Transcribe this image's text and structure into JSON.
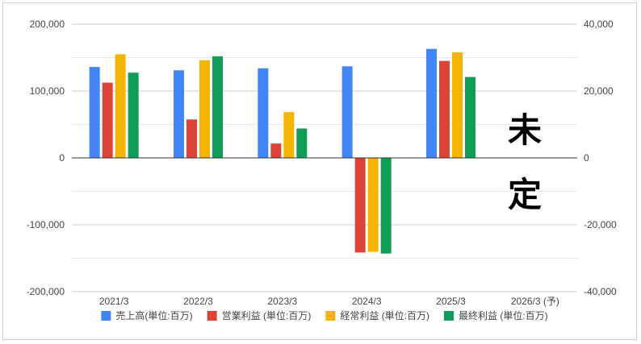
{
  "chart_data": {
    "type": "bar",
    "categories": [
      "2021/3",
      "2022/3",
      "2023/3",
      "2024/3",
      "2025/3",
      "2026/3 (予)"
    ],
    "series": [
      {
        "name": "売上高(単位:百万)",
        "color": "#4285F4",
        "axis": "left",
        "values": [
          136000,
          131000,
          134000,
          137000,
          163000,
          null
        ]
      },
      {
        "name": "営業利益 (単位:百万)",
        "color": "#DB4437",
        "axis": "right",
        "values": [
          22500,
          11500,
          4300,
          -28300,
          29000,
          null
        ]
      },
      {
        "name": "経常利益 (単位:百万)",
        "color": "#F4B400",
        "axis": "right",
        "values": [
          31000,
          29200,
          13700,
          -28100,
          31600,
          null
        ]
      },
      {
        "name": "最終利益 (単位:百万)",
        "color": "#0F9D58",
        "axis": "right",
        "values": [
          25500,
          30400,
          8800,
          -28600,
          24200,
          null
        ]
      }
    ],
    "left_axis": {
      "ticks": [
        "200,000",
        "100,000",
        "0",
        "-100,000",
        "-200,000"
      ],
      "range": [
        -200000,
        200000
      ]
    },
    "right_axis": {
      "ticks": [
        "40,000",
        "20,000",
        "0",
        "-20,000",
        "-40,000"
      ],
      "range": [
        -40000,
        40000
      ]
    },
    "grid": true,
    "legend_position": "bottom",
    "annotation": [
      "未",
      "定"
    ]
  }
}
